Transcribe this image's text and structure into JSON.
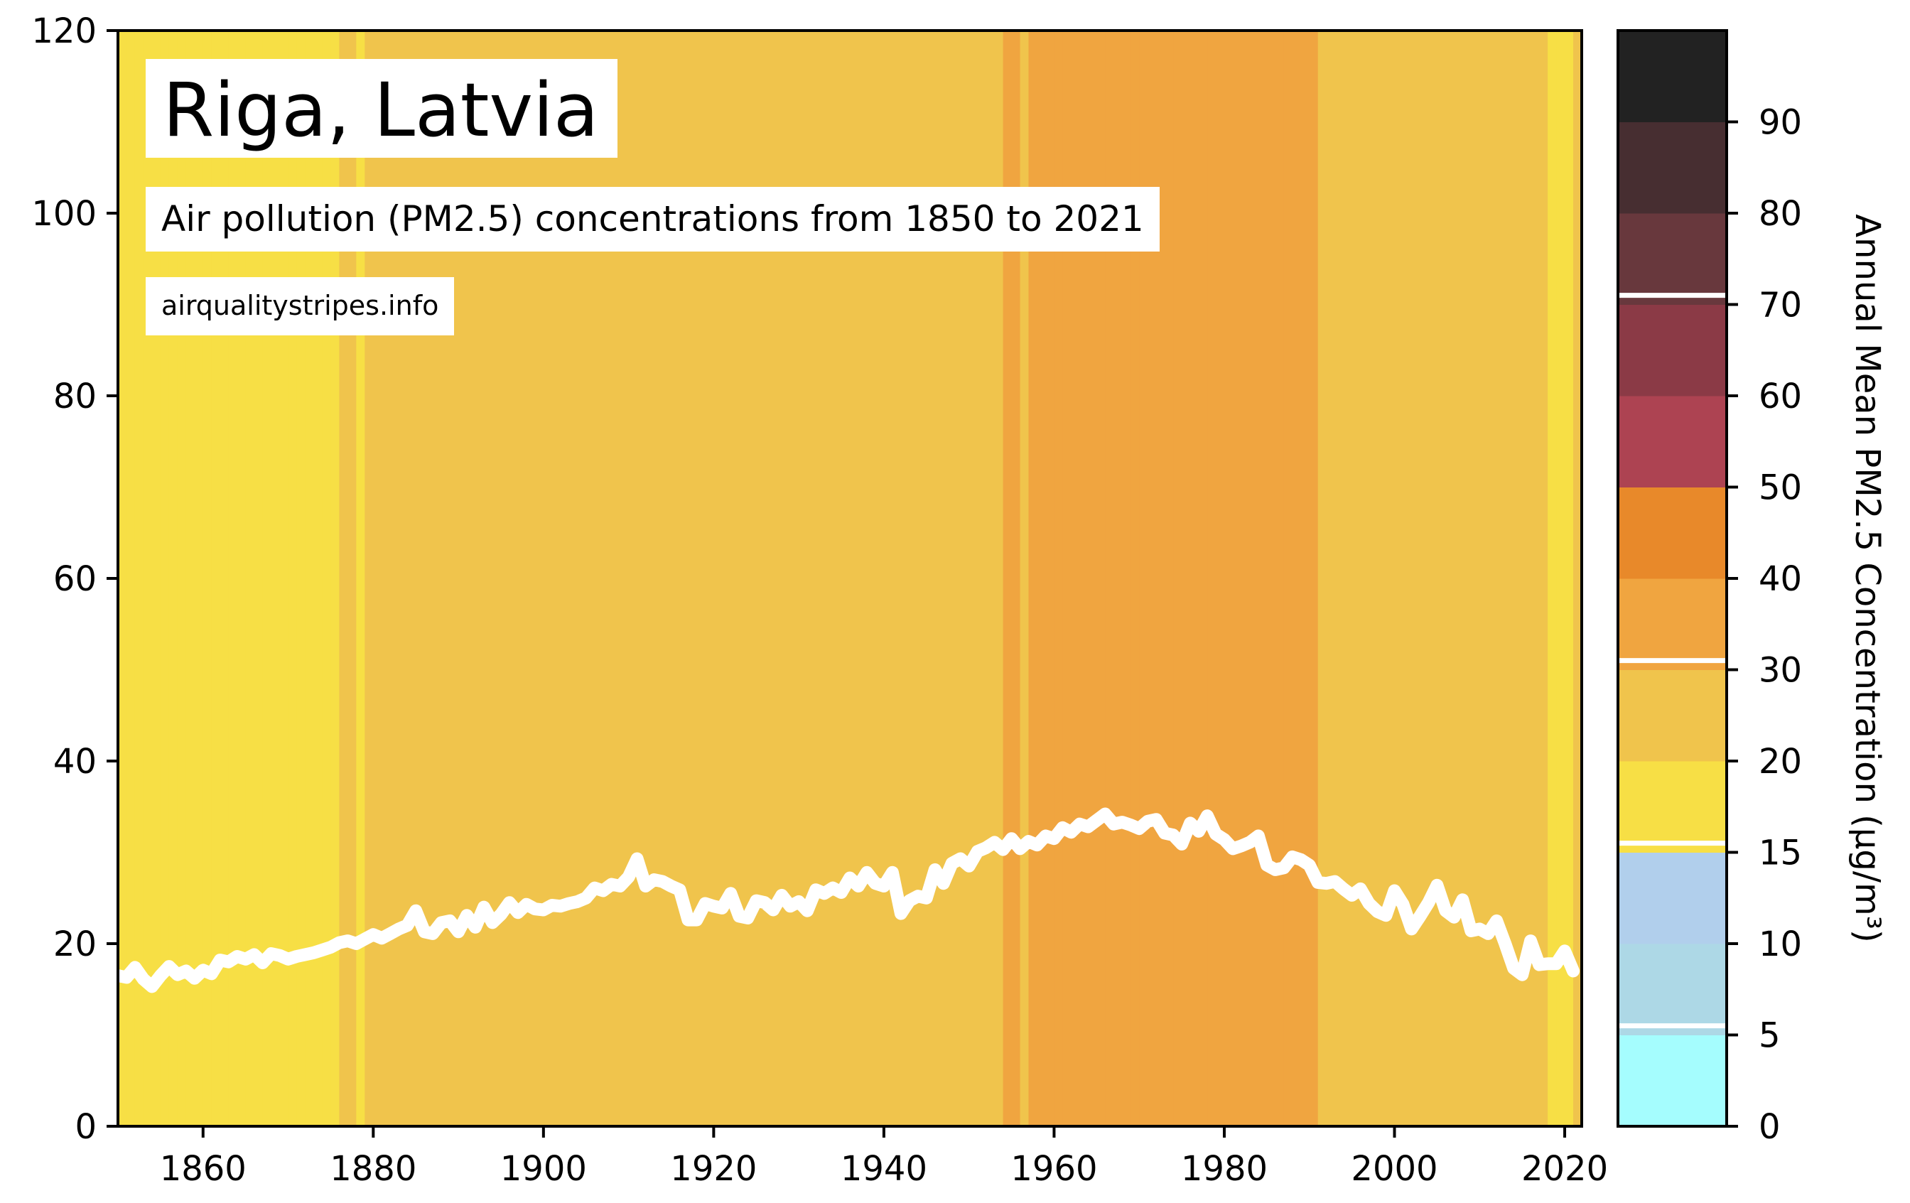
{
  "chart_data": {
    "type": "line",
    "title": "Riga, Latvia",
    "subtitle": "Air pollution (PM2.5) concentrations from 1850 to 2021",
    "source": "airqualitystripes.info",
    "xlabel": "",
    "ylabel": "",
    "xlim": [
      1850,
      2022
    ],
    "ylim": [
      0,
      120
    ],
    "grid": false,
    "x_ticks": [
      1860,
      1880,
      1900,
      1920,
      1940,
      1960,
      1980,
      2000,
      2020
    ],
    "y_ticks": [
      0,
      20,
      40,
      60,
      80,
      100,
      120
    ],
    "series": [
      {
        "color": "#ffffff",
        "x": [
          1850,
          1851,
          1852,
          1853,
          1854,
          1855,
          1856,
          1857,
          1858,
          1859,
          1860,
          1861,
          1862,
          1863,
          1864,
          1865,
          1866,
          1867,
          1868,
          1869,
          1870,
          1871,
          1872,
          1873,
          1874,
          1875,
          1876,
          1877,
          1878,
          1879,
          1880,
          1881,
          1882,
          1883,
          1884,
          1885,
          1886,
          1887,
          1888,
          1889,
          1890,
          1891,
          1892,
          1893,
          1894,
          1895,
          1896,
          1897,
          1898,
          1899,
          1900,
          1901,
          1902,
          1903,
          1904,
          1905,
          1906,
          1907,
          1908,
          1909,
          1910,
          1911,
          1912,
          1913,
          1914,
          1915,
          1916,
          1917,
          1918,
          1919,
          1920,
          1921,
          1922,
          1923,
          1924,
          1925,
          1926,
          1927,
          1928,
          1929,
          1930,
          1931,
          1932,
          1933,
          1934,
          1935,
          1936,
          1937,
          1938,
          1939,
          1940,
          1941,
          1942,
          1943,
          1944,
          1945,
          1946,
          1947,
          1948,
          1949,
          1950,
          1951,
          1952,
          1953,
          1954,
          1955,
          1956,
          1957,
          1958,
          1959,
          1960,
          1961,
          1962,
          1963,
          1964,
          1965,
          1966,
          1967,
          1968,
          1969,
          1970,
          1971,
          1972,
          1973,
          1974,
          1975,
          1976,
          1977,
          1978,
          1979,
          1980,
          1981,
          1982,
          1983,
          1984,
          1985,
          1986,
          1987,
          1988,
          1989,
          1990,
          1991,
          1992,
          1993,
          1994,
          1995,
          1996,
          1997,
          1998,
          1999,
          2000,
          2001,
          2002,
          2003,
          2004,
          2005,
          2006,
          2007,
          2008,
          2009,
          2010,
          2011,
          2012,
          2013,
          2014,
          2015,
          2016,
          2017,
          2018,
          2019,
          2020,
          2021
        ],
        "y": [
          16.5,
          16.3,
          17.4,
          16.1,
          15.3,
          16.5,
          17.5,
          16.6,
          17.0,
          16.2,
          17.1,
          16.7,
          18.2,
          18.0,
          18.6,
          18.3,
          18.8,
          17.9,
          18.9,
          18.7,
          18.3,
          18.6,
          18.8,
          19.0,
          19.3,
          19.6,
          20.1,
          20.3,
          20.0,
          20.5,
          21.0,
          20.6,
          21.1,
          21.6,
          22.0,
          23.6,
          21.3,
          21.1,
          22.3,
          22.5,
          21.3,
          23.1,
          21.8,
          24.0,
          22.3,
          23.2,
          24.5,
          23.4,
          24.3,
          23.8,
          23.7,
          24.2,
          24.1,
          24.4,
          24.6,
          25.0,
          26.1,
          25.8,
          26.5,
          26.3,
          27.3,
          29.3,
          26.3,
          27.0,
          26.8,
          26.3,
          25.9,
          22.6,
          22.6,
          24.4,
          24.1,
          23.9,
          25.5,
          23.0,
          22.8,
          24.7,
          24.5,
          23.7,
          25.3,
          24.1,
          24.6,
          23.6,
          25.9,
          25.5,
          26.1,
          25.6,
          27.2,
          26.3,
          27.8,
          26.6,
          26.3,
          27.8,
          23.3,
          24.7,
          25.2,
          25.0,
          28.1,
          26.6,
          28.8,
          29.3,
          28.5,
          30.1,
          30.5,
          31.1,
          30.3,
          31.5,
          30.4,
          31.2,
          30.8,
          31.8,
          31.5,
          32.7,
          32.2,
          33.1,
          32.8,
          33.5,
          34.2,
          33.1,
          33.3,
          33.0,
          32.6,
          33.4,
          33.6,
          32.1,
          31.9,
          30.9,
          33.2,
          32.3,
          34.0,
          32.0,
          31.4,
          30.4,
          30.7,
          31.1,
          31.8,
          28.6,
          28.1,
          28.3,
          29.5,
          29.2,
          28.6,
          26.7,
          26.6,
          26.8,
          26.0,
          25.3,
          26.0,
          24.4,
          23.5,
          23.1,
          25.8,
          24.3,
          21.6,
          23.0,
          24.5,
          26.4,
          23.6,
          22.9,
          24.8,
          21.4,
          21.6,
          21.1,
          22.5,
          20.0,
          17.3,
          16.6,
          20.3,
          17.7,
          17.8,
          17.8,
          19.2,
          17.0
        ]
      }
    ],
    "stripes_colors": [
      "#f7df45",
      "#f7df45",
      "#f7df45",
      "#f7df45",
      "#f7df45",
      "#f7df45",
      "#f7df45",
      "#f7df45",
      "#f7df45",
      "#f7df45",
      "#f7df45",
      "#f7df45",
      "#f7df45",
      "#f7df45",
      "#f7df45",
      "#f7df45",
      "#f7df45",
      "#f7df45",
      "#f7df45",
      "#f7df45",
      "#f7df45",
      "#f7df45",
      "#f7df45",
      "#f7df45",
      "#f7df45",
      "#f7df45",
      "#f0c44c",
      "#f0c44c",
      "#f7df45",
      "#f0c44c",
      "#f0c44c",
      "#f0c44c",
      "#f0c44c",
      "#f0c44c",
      "#f0c44c",
      "#f0c44c",
      "#f0c44c",
      "#f0c44c",
      "#f0c44c",
      "#f0c44c",
      "#f0c44c",
      "#f0c44c",
      "#f0c44c",
      "#f0c44c",
      "#f0c44c",
      "#f0c44c",
      "#f0c44c",
      "#f0c44c",
      "#f0c44c",
      "#f0c44c",
      "#f0c44c",
      "#f0c44c",
      "#f0c44c",
      "#f0c44c",
      "#f0c44c",
      "#f0c44c",
      "#f0c44c",
      "#f0c44c",
      "#f0c44c",
      "#f0c44c",
      "#f0c44c",
      "#f0c44c",
      "#f0c44c",
      "#f0c44c",
      "#f0c44c",
      "#f0c44c",
      "#f0c44c",
      "#f0c44c",
      "#f0c44c",
      "#f0c44c",
      "#f0c44c",
      "#f0c44c",
      "#f0c44c",
      "#f0c44c",
      "#f0c44c",
      "#f0c44c",
      "#f0c44c",
      "#f0c44c",
      "#f0c44c",
      "#f0c44c",
      "#f0c44c",
      "#f0c44c",
      "#f0c44c",
      "#f0c44c",
      "#f0c44c",
      "#f0c44c",
      "#f0c44c",
      "#f0c44c",
      "#f0c44c",
      "#f0c44c",
      "#f0c44c",
      "#f0c44c",
      "#f0c44c",
      "#f0c44c",
      "#f0c44c",
      "#f0c44c",
      "#f0c44c",
      "#f0c44c",
      "#f0c44c",
      "#f0c44c",
      "#f0c44c",
      "#f0c44c",
      "#f0c44c",
      "#f0c44c",
      "#f0a540",
      "#f0a540",
      "#f0c44c",
      "#f0a540",
      "#f0a540",
      "#f0a540",
      "#f0a540",
      "#f0a540",
      "#f0a540",
      "#f0a540",
      "#f0a540",
      "#f0a540",
      "#f0a540",
      "#f0a540",
      "#f0a540",
      "#f0a540",
      "#f0a540",
      "#f0a540",
      "#f0a540",
      "#f0a540",
      "#f0a540",
      "#f0a540",
      "#f0a540",
      "#f0a540",
      "#f0a540",
      "#f0a540",
      "#f0a540",
      "#f0a540",
      "#f0a540",
      "#f0a540",
      "#f0a540",
      "#f0a540",
      "#f0a540",
      "#f0a540",
      "#f0a540",
      "#f0a540",
      "#f0a540",
      "#f0c44c",
      "#f0c44c",
      "#f0c44c",
      "#f0c44c",
      "#f0c44c",
      "#f0c44c",
      "#f0c44c",
      "#f0c44c",
      "#f0c44c",
      "#f0c44c",
      "#f0c44c",
      "#f0c44c",
      "#f0c44c",
      "#f0c44c",
      "#f0c44c",
      "#f0c44c",
      "#f0c44c",
      "#f0c44c",
      "#f0c44c",
      "#f0c44c",
      "#f0c44c",
      "#f0c44c",
      "#f0c44c",
      "#f0c44c",
      "#f0c44c",
      "#f0c44c",
      "#f0c44c",
      "#f7df45",
      "#f7df45",
      "#f7df45",
      "#f0c44c",
      "#f7df45",
      "#f7df45",
      "#f7df45",
      "#f7df45"
    ],
    "colorbar": {
      "label": "Annual Mean PM2.5 Concentration (μg/m³)",
      "range": [
        0,
        120
      ],
      "ticks": [
        "0",
        "5",
        "10",
        "15",
        "20",
        "30",
        "40",
        "50",
        "60",
        "70",
        "80",
        "90"
      ],
      "bins": [
        {
          "from": 0,
          "to": 10,
          "color": "#a5fdfe"
        },
        {
          "from": 10,
          "to": 20,
          "color": "#add8e6"
        },
        {
          "from": 20,
          "to": 30,
          "color": "#b1cfec"
        },
        {
          "from": 30,
          "to": 40,
          "color": "#f7df45"
        },
        {
          "from": 40,
          "to": 50,
          "color": "#f0c44c"
        },
        {
          "from": 50,
          "to": 60,
          "color": "#f0a540"
        },
        {
          "from": 60,
          "to": 70,
          "color": "#e8892a"
        },
        {
          "from": 70,
          "to": 80,
          "color": "#ad4352"
        },
        {
          "from": 80,
          "to": 90,
          "color": "#8b3a46"
        },
        {
          "from": 90,
          "to": 100,
          "color": "#68383d"
        },
        {
          "from": 100,
          "to": 110,
          "color": "#472e31"
        },
        {
          "from": 110,
          "to": 120,
          "color": "#222222"
        }
      ],
      "dividers": [
        11,
        31,
        51,
        91
      ]
    }
  }
}
